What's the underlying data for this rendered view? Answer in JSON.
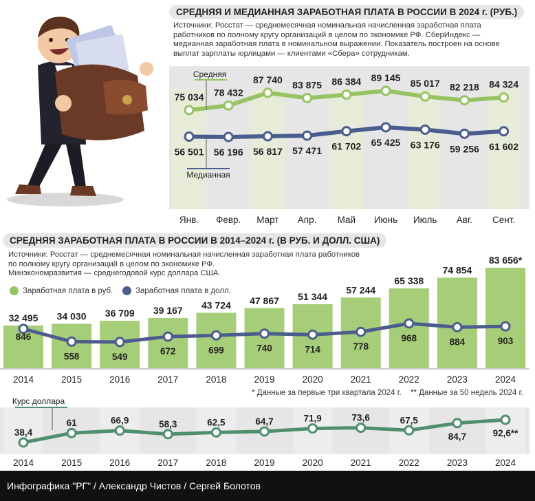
{
  "top": {
    "title": "СРЕДНЯЯ И МЕДИАННАЯ ЗАРАБОТНАЯ ПЛАТА В РОССИИ В 2024 г. (РУБ.)",
    "source_lines": [
      "Источники: Росстат — среднемесячная номинальная начисленная заработная плата",
      "работников по полному кругу организаций в целом по экономике РФ. СберИндекс —",
      "медианная заработная плата в номинальном выражении. Показатель построен на основе",
      "выплат зарплаты юрлицами — клиентами «Сбера» сотрудникам."
    ]
  },
  "bottom": {
    "title": "СРЕДНЯЯ ЗАРАБОТНАЯ ПЛАТА В РОССИИ В 2014–2024 г. (В РУБ. И ДОЛЛ. США)",
    "source_lines": [
      "Источники: Росстат — среднемесячная номинальная начисленная заработная плата работников",
      "по полному кругу организаций в целом по экономике РФ.",
      "Минэкономразвития — среднегодовой курс доллара США."
    ],
    "legend": {
      "rub": "Заработная плата в руб.",
      "usd": "Заработная плата в долл."
    },
    "footnote_1": "* Данные за первые три квартала 2024 г.",
    "footnote_2": "** Данные за 50 недель 2024 г."
  },
  "footer": "Инфографика \"РГ\" / Александр Чистов / Сергей Болотов",
  "colors": {
    "green": "#97c463",
    "green_bar": "#a6cd77",
    "green_bar_light": "#e7ecd9",
    "navy": "#4b5d8e",
    "grey_bg": "#e6e6e6"
  },
  "chart_data": [
    {
      "type": "line",
      "categories": [
        "Янв.",
        "Февр.",
        "Март",
        "Апр.",
        "Май",
        "Июнь",
        "Июль",
        "Авг.",
        "Сент."
      ],
      "series": [
        {
          "name": "Средняя",
          "values": [
            75034,
            78432,
            87740,
            83875,
            86384,
            89145,
            85017,
            82218,
            84324
          ],
          "labels": [
            "75 034",
            "78 432",
            "87 740",
            "83 875",
            "86 384",
            "89 145",
            "85 017",
            "82 218",
            "84 324"
          ]
        },
        {
          "name": "Медианная",
          "values": [
            56501,
            56196,
            56817,
            57471,
            61702,
            65425,
            63176,
            59256,
            61602
          ],
          "labels": [
            "56 501",
            "56 196",
            "56 817",
            "57 471",
            "61 702",
            "65 425",
            "63 176",
            "59 256",
            "61 602"
          ]
        }
      ]
    },
    {
      "type": "bar",
      "categories": [
        "2014",
        "2015",
        "2016",
        "2017",
        "2018",
        "2019",
        "2020",
        "2021",
        "2022",
        "2023",
        "2024"
      ],
      "series": [
        {
          "name": "Заработная плата в руб.",
          "values": [
            32495,
            34030,
            36709,
            39167,
            43724,
            47867,
            51344,
            57244,
            65338,
            74854,
            83656
          ],
          "labels": [
            "32 495",
            "34 030",
            "36 709",
            "39 167",
            "43 724",
            "47 867",
            "51 344",
            "57 244",
            "65 338",
            "74 854",
            "83 656*"
          ]
        },
        {
          "name": "Заработная плата в долл.",
          "type": "line",
          "values": [
            846,
            558,
            549,
            672,
            699,
            740,
            714,
            778,
            968,
            884,
            903
          ],
          "labels": [
            "846",
            "558",
            "549",
            "672",
            "699",
            "740",
            "714",
            "778",
            "968",
            "884",
            "903"
          ]
        }
      ]
    },
    {
      "type": "line",
      "categories": [
        "2014",
        "2015",
        "2016",
        "2017",
        "2018",
        "2019",
        "2020",
        "2021",
        "2022",
        "2023",
        "2024"
      ],
      "series": [
        {
          "name": "Курс доллара",
          "values": [
            38.4,
            61,
            66.9,
            58.3,
            62.5,
            64.7,
            71.9,
            73.6,
            67.5,
            84.7,
            92.6
          ],
          "labels": [
            "38,4",
            "61",
            "66,9",
            "58,3",
            "62,5",
            "64,7",
            "71,9",
            "73,6",
            "67,5",
            "84,7",
            "92,6**"
          ]
        }
      ]
    }
  ]
}
